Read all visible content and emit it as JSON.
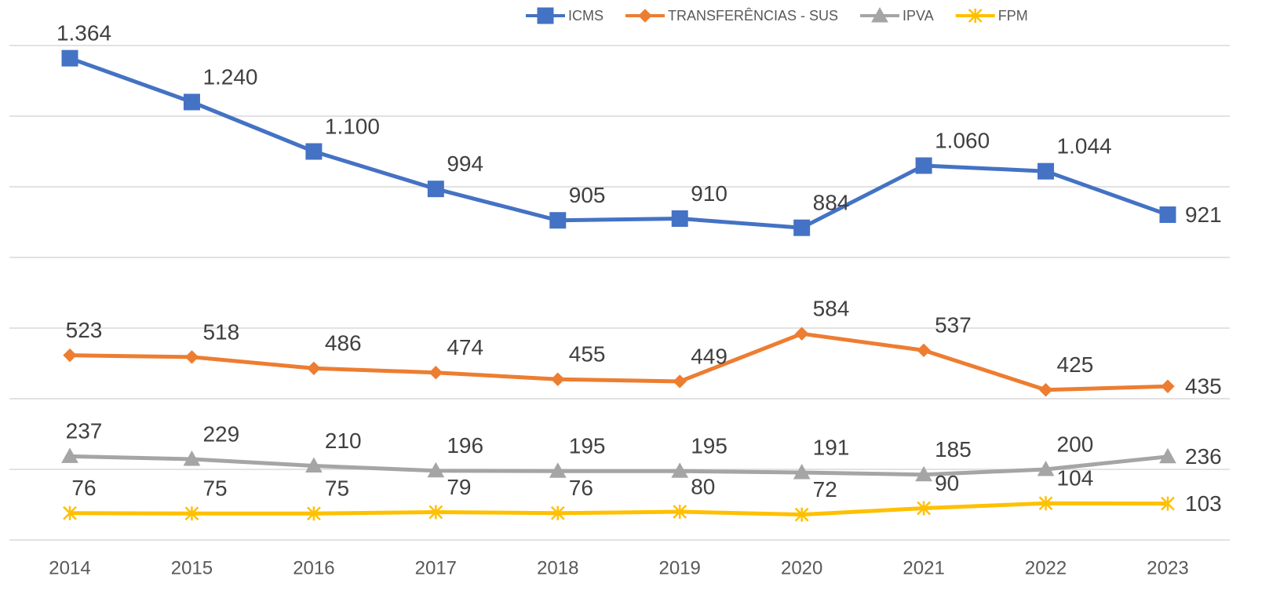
{
  "chart_data": {
    "type": "line",
    "categories": [
      "2014",
      "2015",
      "2016",
      "2017",
      "2018",
      "2019",
      "2020",
      "2021",
      "2022",
      "2023"
    ],
    "series": [
      {
        "name": "ICMS",
        "color": "#4472c4",
        "marker": "square",
        "values": [
          1364,
          1240,
          1100,
          994,
          905,
          910,
          884,
          1060,
          1044,
          921
        ],
        "value_labels": [
          "1.364",
          "1.240",
          "1.100",
          "994",
          "905",
          "910",
          "884",
          "1.060",
          "1.044",
          "921"
        ]
      },
      {
        "name": "TRANSFERÊNCIAS - SUS",
        "color": "#ed7d31",
        "marker": "diamond",
        "values": [
          523,
          518,
          486,
          474,
          455,
          449,
          584,
          537,
          425,
          435
        ]
      },
      {
        "name": "IPVA",
        "color": "#a5a5a5",
        "marker": "triangle",
        "values": [
          237,
          229,
          210,
          196,
          195,
          195,
          191,
          185,
          200,
          236
        ]
      },
      {
        "name": "FPM",
        "color": "#ffc000",
        "marker": "star",
        "values": [
          76,
          75,
          75,
          79,
          76,
          80,
          72,
          90,
          104,
          103
        ]
      }
    ],
    "ylim": [
      0,
      1400
    ],
    "yticks": [
      0,
      200,
      400,
      600,
      800,
      1000,
      1200,
      1400
    ],
    "grid": true,
    "legend": "top"
  }
}
